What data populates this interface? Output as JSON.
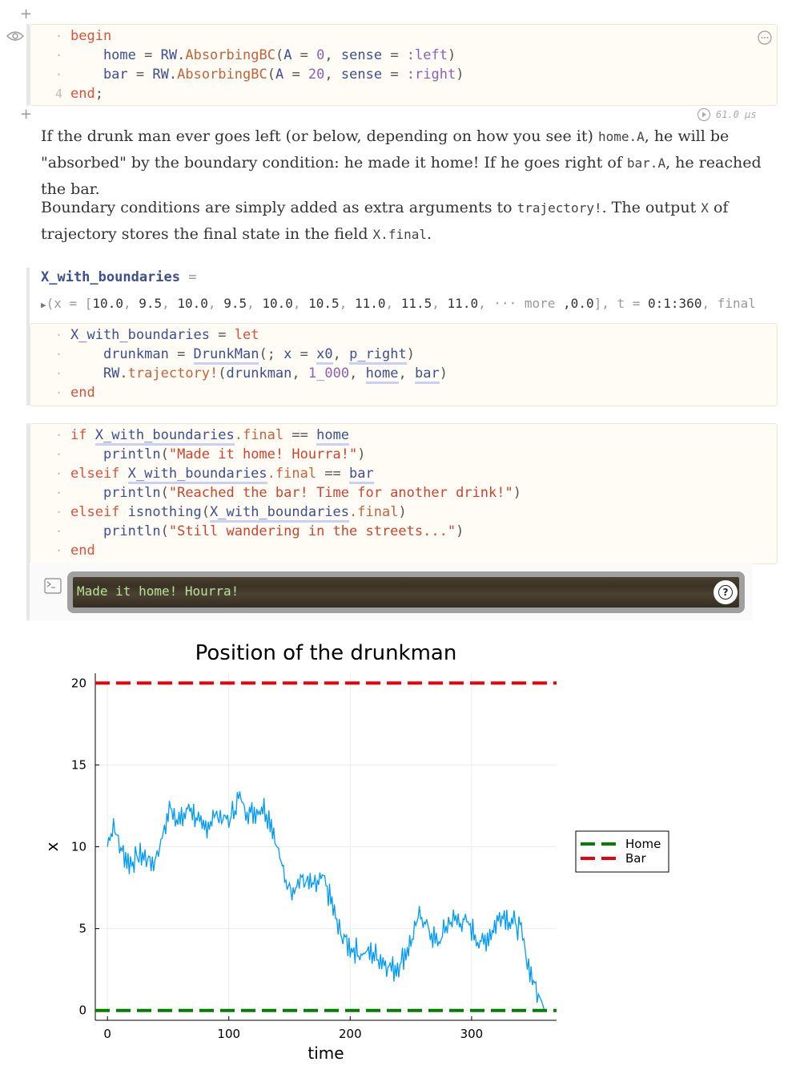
{
  "cell1": {
    "lines": [
      {
        "gutter": "·",
        "parts": [
          {
            "t": "begin",
            "c": "kw"
          }
        ]
      },
      {
        "gutter": "·",
        "parts": [
          {
            "t": "    home",
            "c": "id"
          },
          {
            "t": " = ",
            "c": "op"
          },
          {
            "t": "RW",
            "c": "id"
          },
          {
            "t": ".",
            "c": "op"
          },
          {
            "t": "AbsorbingBC",
            "c": "fn"
          },
          {
            "t": "(",
            "c": "op"
          },
          {
            "t": "A",
            "c": "id"
          },
          {
            "t": " = ",
            "c": "op"
          },
          {
            "t": "0",
            "c": "num"
          },
          {
            "t": ", ",
            "c": "op"
          },
          {
            "t": "sense",
            "c": "id"
          },
          {
            "t": " = ",
            "c": "op"
          },
          {
            "t": ":left",
            "c": "sym"
          },
          {
            "t": ")",
            "c": "op"
          }
        ]
      },
      {
        "gutter": "·",
        "parts": [
          {
            "t": "    bar",
            "c": "id"
          },
          {
            "t": " = ",
            "c": "op"
          },
          {
            "t": "RW",
            "c": "id"
          },
          {
            "t": ".",
            "c": "op"
          },
          {
            "t": "AbsorbingBC",
            "c": "fn"
          },
          {
            "t": "(",
            "c": "op"
          },
          {
            "t": "A",
            "c": "id"
          },
          {
            "t": " = ",
            "c": "op"
          },
          {
            "t": "20",
            "c": "num"
          },
          {
            "t": ", ",
            "c": "op"
          },
          {
            "t": "sense",
            "c": "id"
          },
          {
            "t": " = ",
            "c": "op"
          },
          {
            "t": ":right",
            "c": "sym"
          },
          {
            "t": ")",
            "c": "op"
          }
        ]
      },
      {
        "gutter": "4",
        "parts": [
          {
            "t": "end",
            "c": "kw"
          },
          {
            "t": ";",
            "c": "op"
          }
        ]
      }
    ],
    "runtime": "61.0 μs"
  },
  "prose1": [
    {
      "t": "If the drunk man ever goes left (or below, depending on how you see it) "
    },
    {
      "t": "home.A",
      "code": true
    },
    {
      "t": ", he will be \"absorbed\" by the boundary condition: he made it home! If he goes right of "
    },
    {
      "t": "bar.A",
      "code": true
    },
    {
      "t": ", he reached the bar."
    }
  ],
  "prose2": [
    {
      "t": "Boundary conditions are simply added as extra arguments to "
    },
    {
      "t": "trajectory!",
      "code": true
    },
    {
      "t": ". The output "
    },
    {
      "t": "X",
      "code": true
    },
    {
      "t": " of trajectory stores the final state in the field "
    },
    {
      "t": "X.final",
      "code": true
    },
    {
      "t": "."
    }
  ],
  "output2": {
    "varname": "X_with_boundaries",
    "eq": " =",
    "tuple_prefix": "(x = [",
    "values": [
      "10.0",
      "9.5",
      "10.0",
      "9.5",
      "10.0",
      "10.5",
      "11.0",
      "11.5",
      "11.0"
    ],
    "more": "··· more",
    "tail_value": ",0.0",
    "t_label": "], t = ",
    "t_value": "0:1:360",
    "final_label": ", final"
  },
  "cell2": {
    "lines": [
      {
        "parts": [
          {
            "t": "X_with_boundaries",
            "c": "id"
          },
          {
            "t": " = ",
            "c": "op"
          },
          {
            "t": "let",
            "c": "kw"
          }
        ]
      },
      {
        "parts": [
          {
            "t": "    drunkman",
            "c": "id"
          },
          {
            "t": " = ",
            "c": "op"
          },
          {
            "t": "DrunkMan",
            "c": "link"
          },
          {
            "t": "(; ",
            "c": "op"
          },
          {
            "t": "x",
            "c": "id"
          },
          {
            "t": " = ",
            "c": "op"
          },
          {
            "t": "x0",
            "c": "link"
          },
          {
            "t": ", ",
            "c": "op"
          },
          {
            "t": "p_right",
            "c": "link"
          },
          {
            "t": ")",
            "c": "op"
          }
        ]
      },
      {
        "parts": [
          {
            "t": "    RW",
            "c": "id"
          },
          {
            "t": ".",
            "c": "op"
          },
          {
            "t": "trajectory!",
            "c": "fn"
          },
          {
            "t": "(",
            "c": "op"
          },
          {
            "t": "drunkman",
            "c": "id"
          },
          {
            "t": ", ",
            "c": "op"
          },
          {
            "t": "1_000",
            "c": "num"
          },
          {
            "t": ", ",
            "c": "op"
          },
          {
            "t": "home",
            "c": "link"
          },
          {
            "t": ", ",
            "c": "op"
          },
          {
            "t": "bar",
            "c": "link"
          },
          {
            "t": ")",
            "c": "op"
          }
        ]
      },
      {
        "parts": [
          {
            "t": "end",
            "c": "kw"
          }
        ]
      }
    ]
  },
  "cell3": {
    "lines": [
      {
        "parts": [
          {
            "t": "if ",
            "c": "kw"
          },
          {
            "t": "X_with_boundaries",
            "c": "link"
          },
          {
            "t": ".final",
            "c": "fn"
          },
          {
            "t": " == ",
            "c": "op"
          },
          {
            "t": "home",
            "c": "link"
          }
        ]
      },
      {
        "parts": [
          {
            "t": "    println",
            "c": "id"
          },
          {
            "t": "(",
            "c": "op"
          },
          {
            "t": "\"Made it home! Hourra!\"",
            "c": "str"
          },
          {
            "t": ")",
            "c": "op"
          }
        ]
      },
      {
        "parts": [
          {
            "t": "elseif ",
            "c": "kw"
          },
          {
            "t": "X_with_boundaries",
            "c": "link"
          },
          {
            "t": ".final",
            "c": "fn"
          },
          {
            "t": " == ",
            "c": "op"
          },
          {
            "t": "bar",
            "c": "link"
          }
        ]
      },
      {
        "parts": [
          {
            "t": "    println",
            "c": "id"
          },
          {
            "t": "(",
            "c": "op"
          },
          {
            "t": "\"Reached the bar! Time for another drink!\"",
            "c": "str"
          },
          {
            "t": ")",
            "c": "op"
          }
        ]
      },
      {
        "parts": [
          {
            "t": "elseif ",
            "c": "kw"
          },
          {
            "t": "isnothing",
            "c": "id"
          },
          {
            "t": "(",
            "c": "op"
          },
          {
            "t": "X_with_boundaries",
            "c": "link"
          },
          {
            "t": ".final",
            "c": "fn"
          },
          {
            "t": ")",
            "c": "op"
          }
        ]
      },
      {
        "parts": [
          {
            "t": "    println",
            "c": "id"
          },
          {
            "t": "(",
            "c": "op"
          },
          {
            "t": "\"Still wandering in the streets...\"",
            "c": "str"
          },
          {
            "t": ")",
            "c": "op"
          }
        ]
      },
      {
        "parts": [
          {
            "t": "end",
            "c": "kw"
          }
        ]
      }
    ],
    "stdout": "Made it home! Hourra!",
    "help_glyph": "?"
  },
  "chart_data": {
    "type": "line",
    "title": "Position of the drunkman",
    "xlabel": "time",
    "ylabel": "x",
    "xlim": [
      -10,
      370
    ],
    "ylim": [
      -0.6,
      20.6
    ],
    "xticks": [
      0,
      100,
      200,
      300
    ],
    "yticks": [
      0,
      5,
      10,
      15,
      20
    ],
    "grid": true,
    "legend": {
      "placement": "outer-right",
      "entries": [
        "Home",
        "Bar"
      ]
    },
    "series": [
      {
        "name": "Home",
        "style": "dashed",
        "color": "#008000",
        "y": 0
      },
      {
        "name": "Bar",
        "style": "dashed",
        "color": "#e8000b",
        "y": 20
      }
    ],
    "trajectory_color": "#009af9",
    "trajectory_keypoints": [
      [
        0,
        10
      ],
      [
        5,
        11.5
      ],
      [
        10,
        10
      ],
      [
        18,
        9
      ],
      [
        28,
        9.5
      ],
      [
        38,
        9
      ],
      [
        45,
        10.5
      ],
      [
        52,
        12.5
      ],
      [
        60,
        11.5
      ],
      [
        68,
        12.5
      ],
      [
        78,
        11
      ],
      [
        90,
        12
      ],
      [
        100,
        11.5
      ],
      [
        108,
        13
      ],
      [
        118,
        12
      ],
      [
        128,
        12.5
      ],
      [
        135,
        11.5
      ],
      [
        140,
        10
      ],
      [
        146,
        8
      ],
      [
        152,
        7.5
      ],
      [
        160,
        8
      ],
      [
        170,
        7.5
      ],
      [
        178,
        8
      ],
      [
        185,
        6.5
      ],
      [
        190,
        5
      ],
      [
        198,
        4
      ],
      [
        208,
        3.5
      ],
      [
        218,
        3.5
      ],
      [
        228,
        3
      ],
      [
        236,
        2.5
      ],
      [
        242,
        3
      ],
      [
        252,
        4.5
      ],
      [
        258,
        6
      ],
      [
        264,
        5
      ],
      [
        272,
        4
      ],
      [
        282,
        5.5
      ],
      [
        292,
        5.5
      ],
      [
        300,
        5
      ],
      [
        308,
        4
      ],
      [
        318,
        5
      ],
      [
        325,
        6
      ],
      [
        332,
        5.5
      ],
      [
        340,
        5
      ],
      [
        346,
        3
      ],
      [
        352,
        1.5
      ],
      [
        358,
        0.5
      ],
      [
        360,
        0
      ]
    ]
  }
}
